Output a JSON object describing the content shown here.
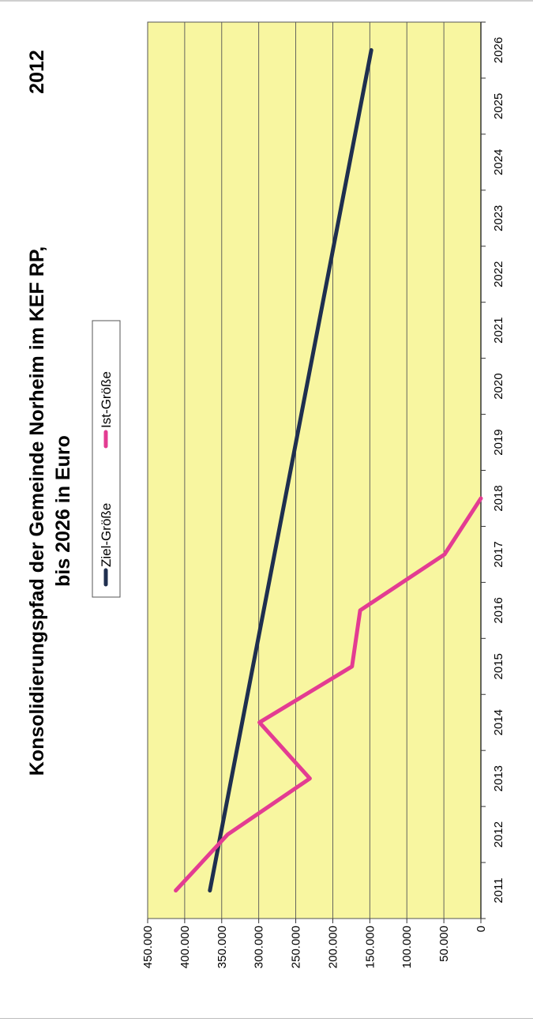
{
  "chart_data": {
    "type": "line",
    "title_line1": "Konsolidierungspfad der Gemeinde Norheim im KEF RP,",
    "title_line2": "bis 2026 in Euro",
    "year_label": "2012",
    "x": [
      2011,
      2012,
      2013,
      2014,
      2015,
      2016,
      2017,
      2018,
      2019,
      2020,
      2021,
      2022,
      2023,
      2024,
      2025,
      2026
    ],
    "x_tick_labels": [
      "2011",
      "2012",
      "2013",
      "2014",
      "2015",
      "2016",
      "2017",
      "2018",
      "2019",
      "2020",
      "2021",
      "2022",
      "2023",
      "2024",
      "2025",
      "2026"
    ],
    "y_tick_labels": [
      "0",
      "50.000",
      "100.000",
      "150.000",
      "200.000",
      "250.000",
      "300.000",
      "350.000",
      "400.000",
      "450.000"
    ],
    "ylim": [
      0,
      450000
    ],
    "y_ticks": [
      0,
      50000,
      100000,
      150000,
      200000,
      250000,
      300000,
      350000,
      400000,
      450000
    ],
    "grid": true,
    "legend_position": "top",
    "series": [
      {
        "name": "Ziel-Größe",
        "color": "#1f2f4f",
        "x": [
          2011,
          2026
        ],
        "y": [
          366000,
          148000
        ]
      },
      {
        "name": "Ist-Größe",
        "color": "#e33c92",
        "x": [
          2011,
          2012,
          2013,
          2014,
          2015,
          2016,
          2017,
          2018
        ],
        "y": [
          412000,
          342000,
          231000,
          299000,
          174000,
          163000,
          49000,
          0
        ]
      }
    ]
  },
  "colors": {
    "plot_background": "#f8f6a0",
    "gridline": "#555555",
    "axis": "#333333"
  }
}
